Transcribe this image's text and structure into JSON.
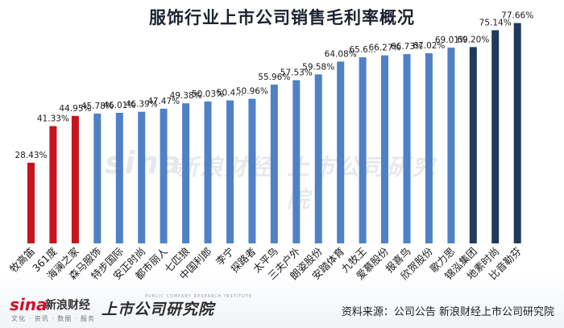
{
  "title": "服饰行业上市公司销售毛利率概况",
  "source": "资料来源：公司公告 新浪财经上市公司研究院",
  "brand": {
    "sina_logo": "sina",
    "sina_name": "新浪财经",
    "sina_tagline": "文化 · 资讯 · 数据 · 服务",
    "research_name": "上市公司研究院",
    "research_sub": "PUBLIC COMPANY RESEARCH INSTITUTE"
  },
  "colors": {
    "red": "#c5151e",
    "mid_blue": "#4f81c7",
    "dark_blue": "#1f3a5c"
  },
  "chart_data": {
    "type": "bar",
    "title": "服饰行业上市公司销售毛利率概况",
    "xlabel": "",
    "ylabel": "",
    "ylim": [
      0,
      85
    ],
    "grid": false,
    "legend": "none",
    "categories": [
      "牧高笛",
      "361度",
      "海澜之家",
      "森马服饰",
      "特步国际",
      "安正时尚",
      "都市丽人",
      "七匹狼",
      "中国利郎",
      "李宁",
      "探路者",
      "太平鸟",
      "三夫户外",
      "朗姿股份",
      "安踏体育",
      "九牧王",
      "爱慕股份",
      "报喜鸟",
      "欣贺股份",
      "歌力思",
      "锦泓集团",
      "地素时尚",
      "比音勒芬"
    ],
    "values": [
      28.43,
      41.33,
      44.95,
      45.78,
      46.01,
      46.39,
      47.47,
      49.38,
      50.03,
      50.4,
      50.96,
      55.96,
      57.53,
      59.58,
      64.08,
      65.6,
      66.27,
      66.73,
      67.02,
      69.01,
      69.2,
      75.14,
      77.66
    ],
    "data_labels": [
      "28.43%",
      "41.33%",
      "44.95%",
      "45.78%",
      "46.01%",
      "46.39%",
      "47.47%",
      "49.38%",
      "50.03%",
      "50.4...",
      "50.96%",
      "55.96%",
      "57.53%",
      "59.58%",
      "64.08%",
      "65.6...",
      "66.27%",
      "66.73%",
      "67.02%",
      "69.01%",
      "69.20%",
      "75.14%",
      "77.66%"
    ],
    "bar_colors": [
      "#c5151e",
      "#c5151e",
      "#c5151e",
      "#4f81c7",
      "#4f81c7",
      "#4f81c7",
      "#4f81c7",
      "#4f81c7",
      "#4f81c7",
      "#4f81c7",
      "#4f81c7",
      "#4f81c7",
      "#4f81c7",
      "#4f81c7",
      "#4f81c7",
      "#4f81c7",
      "#4f81c7",
      "#4f81c7",
      "#4f81c7",
      "#4f81c7",
      "#1f3a5c",
      "#1f3a5c",
      "#1f3a5c"
    ]
  }
}
